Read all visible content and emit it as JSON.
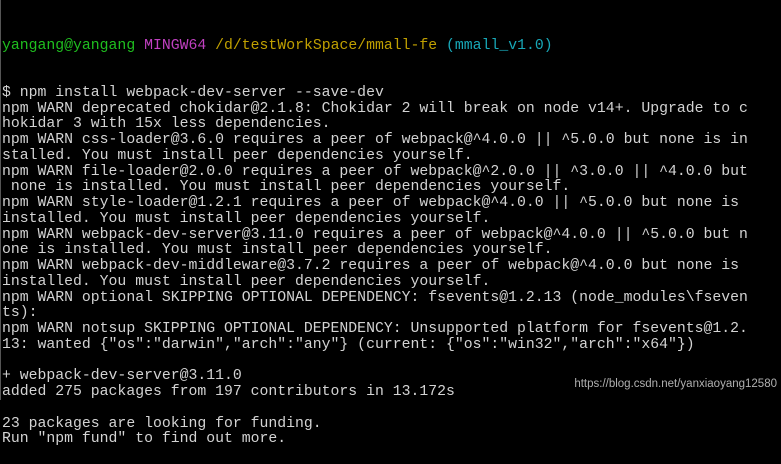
{
  "prompt": {
    "user": "yangang@yangang",
    "system": "MINGW64",
    "path": "/d/testWorkSpace/mmall-fe",
    "branch": "(mmall_v1.0)"
  },
  "colors": {
    "background": "#000000",
    "text": "#d3d3d3",
    "user": "#1fbf1f",
    "system": "#c040c0",
    "path": "#c0a000",
    "branch": "#18a8b8"
  },
  "lines": [
    "$ npm install webpack-dev-server --save-dev",
    "npm WARN deprecated chokidar@2.1.8: Chokidar 2 will break on node v14+. Upgrade to c",
    "hokidar 3 with 15x less dependencies.",
    "npm WARN css-loader@3.6.0 requires a peer of webpack@^4.0.0 || ^5.0.0 but none is in",
    "stalled. You must install peer dependencies yourself.",
    "npm WARN file-loader@2.0.0 requires a peer of webpack@^2.0.0 || ^3.0.0 || ^4.0.0 but",
    " none is installed. You must install peer dependencies yourself.",
    "npm WARN style-loader@1.2.1 requires a peer of webpack@^4.0.0 || ^5.0.0 but none is",
    "installed. You must install peer dependencies yourself.",
    "npm WARN webpack-dev-server@3.11.0 requires a peer of webpack@^4.0.0 || ^5.0.0 but n",
    "one is installed. You must install peer dependencies yourself.",
    "npm WARN webpack-dev-middleware@3.7.2 requires a peer of webpack@^4.0.0 but none is",
    "installed. You must install peer dependencies yourself.",
    "npm WARN optional SKIPPING OPTIONAL DEPENDENCY: fsevents@1.2.13 (node_modules\\fseven",
    "ts):",
    "npm WARN notsup SKIPPING OPTIONAL DEPENDENCY: Unsupported platform for fsevents@1.2.",
    "13: wanted {\"os\":\"darwin\",\"arch\":\"any\"} (current: {\"os\":\"win32\",\"arch\":\"x64\"})",
    "",
    "+ webpack-dev-server@3.11.0",
    "added 275 packages from 197 contributors in 13.172s",
    "",
    "23 packages are looking for funding.",
    "Run \"npm fund\" to find out more."
  ],
  "watermark": "https://blog.csdn.net/yanxiaoyang12580"
}
